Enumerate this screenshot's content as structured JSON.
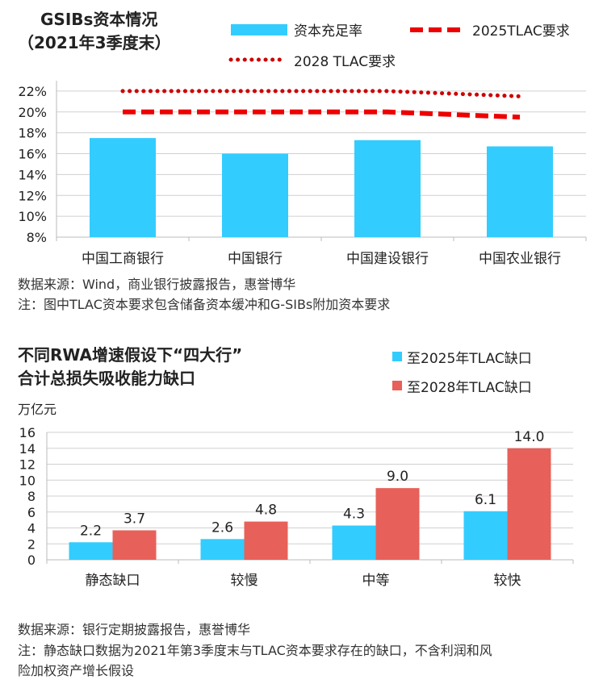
{
  "chart_data": [
    {
      "type": "bar",
      "title": "GSIBs资本情况",
      "subtitle": "（2021年3季度末）",
      "categories": [
        "中国工商银行",
        "中国银行",
        "中国建设银行",
        "中国农业银行"
      ],
      "series": [
        {
          "name": "资本充足率",
          "type": "bar",
          "values": [
            17.5,
            16.0,
            17.3,
            16.7
          ],
          "color": "#33ccff"
        },
        {
          "name": "2025TLAC要求",
          "type": "line",
          "style": "dashed",
          "values": [
            20.0,
            20.0,
            20.0,
            19.5
          ],
          "color": "#ee0000"
        },
        {
          "name": "2028 TLAC要求",
          "type": "line",
          "style": "dotted",
          "values": [
            22.0,
            22.0,
            22.0,
            21.5
          ],
          "color": "#cc0000"
        }
      ],
      "y_ticks": [
        "22%",
        "20%",
        "18%",
        "16%",
        "14%",
        "12%",
        "10%",
        "8%"
      ],
      "ylim": [
        8,
        23
      ],
      "grid": true,
      "legend": "top-right",
      "source": "数据来源：Wind，商业银行披露报告，惠誉博华",
      "note": "注：图中TLAC资本要求包含储备资本缓冲和G-SIBs附加资本要求"
    },
    {
      "type": "bar",
      "title_line1": "不同RWA增速假设下“四大行”",
      "title_line2": "合计总损失吸收能力缺口",
      "ylabel": "万亿元",
      "categories": [
        "静态缺口",
        "较慢",
        "中等",
        "较快"
      ],
      "series": [
        {
          "name": "至2025年TLAC缺口",
          "values": [
            2.2,
            2.6,
            4.3,
            6.1
          ],
          "color": "#33ccff"
        },
        {
          "name": "至2028年TLAC缺口",
          "values": [
            3.7,
            4.8,
            9.0,
            14.0
          ],
          "color": "#e8605a"
        }
      ],
      "value_labels": [
        [
          "2.2",
          "2.6",
          "4.3",
          "6.1"
        ],
        [
          "3.7",
          "4.8",
          "9.0",
          "14.0"
        ]
      ],
      "y_ticks": [
        "16",
        "14",
        "12",
        "10",
        "8",
        "6",
        "4",
        "2",
        "0"
      ],
      "ylim": [
        0,
        16
      ],
      "grid": true,
      "legend": "top-right",
      "source": "数据来源：银行定期披露报告，惠誉博华",
      "note_line1": "注：静态缺口数据为2021年第3季度末与TLAC资本要求存在的缺口，不含利润和风",
      "note_line2": "险加权资产增长假设"
    }
  ]
}
